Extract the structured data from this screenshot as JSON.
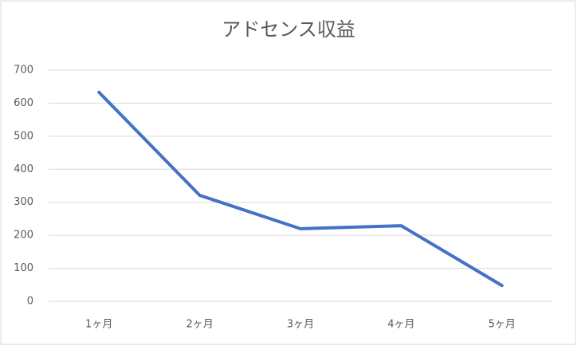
{
  "chart_data": {
    "type": "line",
    "title": "アドセンス収益",
    "categories": [
      "1ヶ月",
      "2ヶ月",
      "3ヶ月",
      "4ヶ月",
      "5ヶ月"
    ],
    "series": [
      {
        "color": "#4472c4",
        "values": [
          633,
          321,
          220,
          229,
          48
        ]
      }
    ],
    "ylim": [
      0,
      700
    ],
    "yticks": [
      0,
      100,
      200,
      300,
      400,
      500,
      600,
      700
    ],
    "grid": true
  }
}
